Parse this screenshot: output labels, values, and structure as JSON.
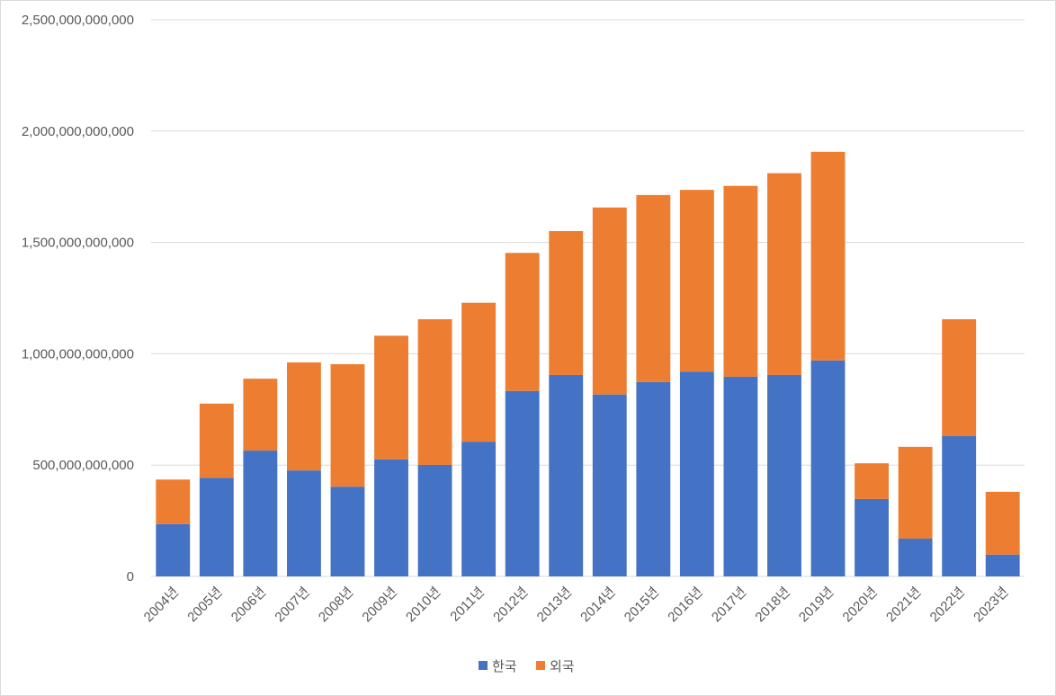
{
  "chart_data": {
    "type": "bar",
    "stacked": true,
    "categories": [
      "2004년",
      "2005년",
      "2006년",
      "2007년",
      "2008년",
      "2009년",
      "2010년",
      "2011년",
      "2012년",
      "2013년",
      "2014년",
      "2015년",
      "2016년",
      "2017년",
      "2018년",
      "2019년",
      "2020년",
      "2021년",
      "2022년",
      "2023년"
    ],
    "series": [
      {
        "name": "한국",
        "color": "#4472c4",
        "values": [
          235000000000,
          443000000000,
          565000000000,
          476000000000,
          403000000000,
          526000000000,
          501000000000,
          605000000000,
          833000000000,
          905000000000,
          817000000000,
          873000000000,
          920000000000,
          897000000000,
          905000000000,
          970000000000,
          348000000000,
          170000000000,
          630000000000,
          98000000000
        ]
      },
      {
        "name": "외국",
        "color": "#ed7d31",
        "values": [
          200000000000,
          333000000000,
          323000000000,
          485000000000,
          550000000000,
          555000000000,
          654000000000,
          624000000000,
          620000000000,
          646000000000,
          840000000000,
          840000000000,
          816000000000,
          857000000000,
          906000000000,
          937000000000,
          160000000000,
          412000000000,
          525000000000,
          282000000000
        ]
      }
    ],
    "ylim": [
      0,
      2500000000000
    ],
    "y_ticks": [
      0,
      500000000000,
      1000000000000,
      1500000000000,
      2000000000000,
      2500000000000
    ],
    "y_tick_labels": [
      "0",
      "500,000,000,000",
      "1,000,000,000,000",
      "1,500,000,000,000",
      "2,000,000,000,000",
      "2,500,000,000,000"
    ],
    "grid": true,
    "gridline_color": "#d9d9d9",
    "legend_position": "bottom",
    "x_label_rotation": "-45deg"
  }
}
